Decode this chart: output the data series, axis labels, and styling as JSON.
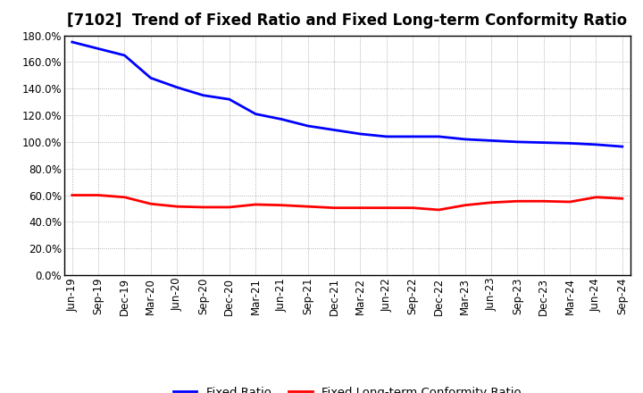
{
  "title": "[7102]  Trend of Fixed Ratio and Fixed Long-term Conformity Ratio",
  "x_labels": [
    "Jun-19",
    "Sep-19",
    "Dec-19",
    "Mar-20",
    "Jun-20",
    "Sep-20",
    "Dec-20",
    "Mar-21",
    "Jun-21",
    "Sep-21",
    "Dec-21",
    "Mar-22",
    "Jun-22",
    "Sep-22",
    "Dec-22",
    "Mar-23",
    "Jun-23",
    "Sep-23",
    "Dec-23",
    "Mar-24",
    "Jun-24",
    "Sep-24"
  ],
  "fixed_ratio": [
    175.0,
    170.0,
    165.0,
    148.0,
    141.0,
    135.0,
    132.0,
    121.0,
    117.0,
    112.0,
    109.0,
    106.0,
    104.0,
    104.0,
    104.0,
    102.0,
    101.0,
    100.0,
    99.5,
    99.0,
    98.0,
    96.5
  ],
  "fixed_lt_ratio": [
    60.0,
    60.0,
    58.5,
    53.5,
    51.5,
    51.0,
    51.0,
    53.0,
    52.5,
    51.5,
    50.5,
    50.5,
    50.5,
    50.5,
    49.0,
    52.5,
    54.5,
    55.5,
    55.5,
    55.0,
    58.5,
    57.5
  ],
  "fixed_ratio_color": "#0000FF",
  "fixed_lt_ratio_color": "#FF0000",
  "background_color": "#FFFFFF",
  "grid_color": "#AAAAAA",
  "ylim": [
    0,
    180
  ],
  "yticks": [
    0,
    20,
    40,
    60,
    80,
    100,
    120,
    140,
    160,
    180
  ],
  "legend_fixed": "Fixed Ratio",
  "legend_lt": "Fixed Long-term Conformity Ratio",
  "title_fontsize": 12,
  "axis_fontsize": 8.5,
  "legend_fontsize": 9.5
}
